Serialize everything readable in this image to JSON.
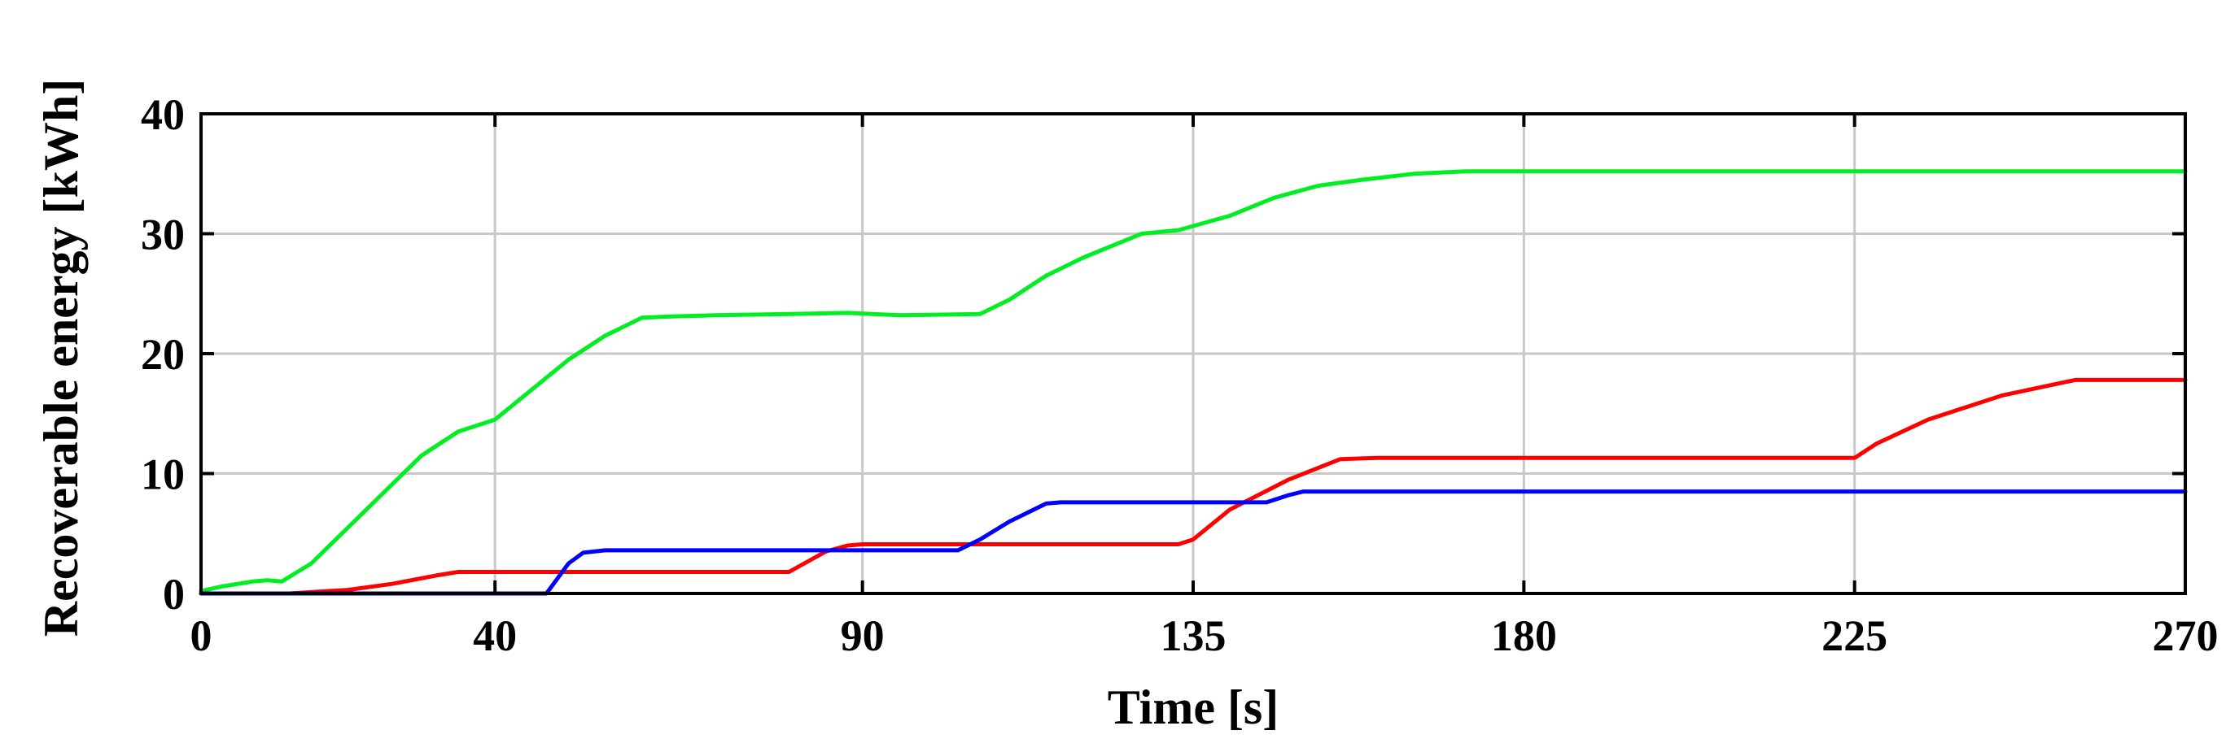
{
  "chart_data": {
    "type": "line",
    "title": "",
    "xlabel": "Time [s]",
    "ylabel": "Recoverable energy [kWh]",
    "xlim": [
      0,
      270
    ],
    "ylim": [
      0,
      40
    ],
    "x_ticks": [
      0,
      40,
      90,
      135,
      180,
      225,
      270
    ],
    "x_tick_labels": [
      "0",
      "40",
      "90",
      "135",
      "180",
      "225",
      "270"
    ],
    "y_ticks": [
      0,
      10,
      20,
      30,
      40
    ],
    "y_tick_labels": [
      "0",
      "10",
      "20",
      "30",
      "40"
    ],
    "grid": true,
    "series": [
      {
        "color": "#00ee22",
        "x": [
          0,
          3,
          7,
          9,
          11,
          15,
          20,
          25,
          30,
          35,
          40,
          45,
          50,
          55,
          60,
          64,
          70,
          80,
          88,
          95,
          106,
          110,
          115,
          120,
          128,
          133,
          140,
          146,
          152,
          158,
          165,
          172,
          180,
          225,
          270
        ],
        "y": [
          0.2,
          0.6,
          1.0,
          1.1,
          1.0,
          2.5,
          5.5,
          8.5,
          11.5,
          13.5,
          14.5,
          17.0,
          19.5,
          21.5,
          23.0,
          23.1,
          23.2,
          23.3,
          23.4,
          23.2,
          23.3,
          24.5,
          26.5,
          28.0,
          30.0,
          30.3,
          31.5,
          33.0,
          34.0,
          34.5,
          35.0,
          35.2,
          35.2,
          35.2,
          35.2
        ]
      },
      {
        "color": "#ff0000",
        "x": [
          0,
          12,
          20,
          26,
          32,
          35,
          40,
          60,
          80,
          85,
          88,
          90,
          100,
          120,
          133,
          135,
          140,
          148,
          155,
          160,
          180,
          200,
          225,
          228,
          235,
          245,
          255,
          260,
          270
        ],
        "y": [
          0,
          0,
          0.3,
          0.8,
          1.5,
          1.8,
          1.8,
          1.8,
          1.8,
          3.5,
          4.0,
          4.1,
          4.1,
          4.1,
          4.1,
          4.5,
          7.0,
          9.5,
          11.2,
          11.3,
          11.3,
          11.3,
          11.3,
          12.5,
          14.5,
          16.5,
          17.8,
          17.8,
          17.8
        ]
      },
      {
        "color": "#0000ff",
        "x": [
          0,
          47,
          50,
          52,
          55,
          60,
          90,
          103,
          106,
          110,
          115,
          117,
          130,
          145,
          148,
          150,
          155,
          180,
          225,
          270
        ],
        "y": [
          0,
          0,
          2.5,
          3.4,
          3.6,
          3.6,
          3.6,
          3.6,
          4.5,
          6.0,
          7.5,
          7.6,
          7.6,
          7.6,
          8.2,
          8.5,
          8.5,
          8.5,
          8.5,
          8.5
        ]
      }
    ]
  }
}
